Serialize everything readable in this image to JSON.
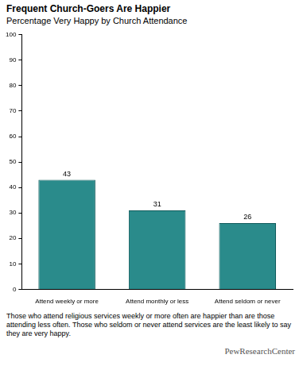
{
  "chart_data": {
    "type": "bar",
    "title": "Frequent Church-Goers Are Happier",
    "subtitle": "Percentage Very Happy by Church Attendance",
    "categories": [
      "Attend weekly or more",
      "Attend monthly or less",
      "Attend seldom or never"
    ],
    "values": [
      43,
      31,
      26
    ],
    "color": "#2a8b8b",
    "ylim": [
      0,
      100
    ],
    "yticks": [
      0,
      10,
      20,
      30,
      40,
      50,
      60,
      70,
      80,
      90,
      100
    ],
    "grid": false,
    "data_labels": true,
    "caption": "Those who attend religious services weekly or more often are happier than are those attending less often. Those who seldom or never attend services are the least likely to say they are very happy.",
    "source": "PewResearchCenter"
  }
}
